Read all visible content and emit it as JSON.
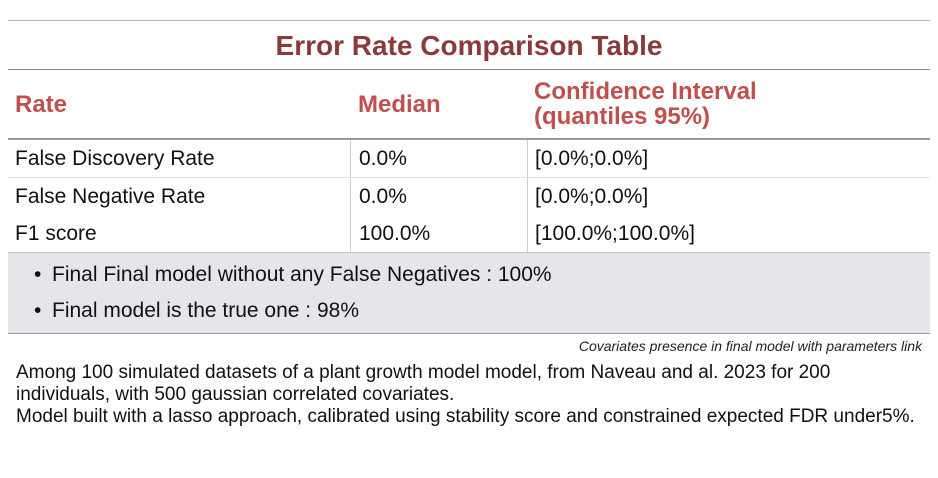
{
  "title": "Error Rate Comparison Table",
  "columns": {
    "rate": "Rate",
    "median": "Median",
    "ci_line1": "Confidence Interval",
    "ci_line2": "(quantiles 95%)"
  },
  "rows": [
    {
      "rate": "False Discovery Rate",
      "median": "0.0%",
      "ci": "[0.0%;0.0%]"
    },
    {
      "rate": "False Negative Rate",
      "median": "0.0%",
      "ci": "[0.0%;0.0%]"
    },
    {
      "rate": "F1 score",
      "median": "100.0%",
      "ci": "[100.0%;100.0%]"
    }
  ],
  "notes": [
    {
      "bullet": "•",
      "text": "Final Final model without any False Negatives : 100%"
    },
    {
      "bullet": "•",
      "text": "Final model is the true one : 98%"
    }
  ],
  "caption": "Covariates presence in final model with parameters link",
  "footnote": {
    "line1": "Among 100 simulated datasets of a plant growth model model, from Naveau and al. 2023 for 200 individuals, with 500 gaussian correlated covariates.",
    "line2": "Model built with a lasso approach, calibrated using stability score and constrained expected FDR under5%."
  }
}
